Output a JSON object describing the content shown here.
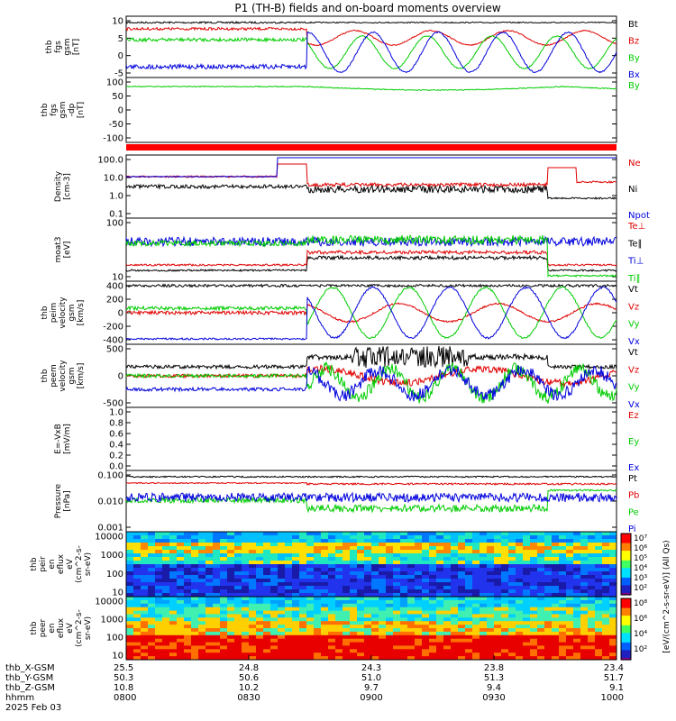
{
  "chart_data": {
    "type": "line",
    "title": "P1 (TH-B) fields and on-board moments overview",
    "colors": {
      "black": "#000000",
      "red": "#e00000",
      "green": "#00cc00",
      "blue": "#0000dd"
    },
    "panels": [
      {
        "id": "fgs",
        "ylabel": [
          "thb",
          "fgs",
          "gsm",
          "[nT]"
        ],
        "ticks": [
          "10",
          "5",
          "0",
          "-5"
        ],
        "legend": [
          {
            "text": "Bt",
            "color": "black"
          },
          {
            "text": "Bz",
            "color": "red"
          },
          {
            "text": "By",
            "color": "green"
          },
          {
            "text": "Bx",
            "color": "blue"
          }
        ]
      },
      {
        "id": "fgs-dp",
        "ylabel": [
          "thb",
          "fgs",
          "gsm",
          "-dp",
          "[nT]"
        ],
        "ticks": [
          "100",
          "50",
          "0",
          "-50",
          "-100"
        ],
        "legend": [
          {
            "text": "By",
            "color": "green"
          }
        ]
      },
      {
        "id": "density",
        "ylabel": [
          "Density",
          "[cm-3]"
        ],
        "ticks": [
          "100.0",
          "10.0",
          "1.0",
          "0.1"
        ],
        "scale": "log",
        "legend": [
          {
            "text": "Ne",
            "color": "red"
          },
          {
            "text": "Ni",
            "color": "black"
          },
          {
            "text": "Npot",
            "color": "blue"
          }
        ]
      },
      {
        "id": "temp",
        "ylabel": [
          "moat3",
          "[eV]"
        ],
        "ticks": [
          "100",
          "10"
        ],
        "scale": "log",
        "legend": [
          {
            "text": "Te⊥",
            "color": "red"
          },
          {
            "text": "Te∥",
            "color": "black"
          },
          {
            "text": "Ti⊥",
            "color": "blue"
          },
          {
            "text": "Ti∥",
            "color": "green"
          }
        ]
      },
      {
        "id": "vi",
        "ylabel": [
          "thb",
          "peim",
          "velocity",
          "gsm",
          "[km/s]"
        ],
        "ticks": [
          "400",
          "200",
          "0",
          "-200",
          "-400"
        ],
        "legend": [
          {
            "text": "Vt",
            "color": "black"
          },
          {
            "text": "Vz",
            "color": "red"
          },
          {
            "text": "Vy",
            "color": "green"
          },
          {
            "text": "Vx",
            "color": "blue"
          }
        ]
      },
      {
        "id": "ve",
        "ylabel": [
          "thb",
          "peem",
          "velocity",
          "gsm",
          "[km/s]"
        ],
        "ticks": [
          "500",
          "0",
          "-500"
        ],
        "legend": [
          {
            "text": "Vt",
            "color": "black"
          },
          {
            "text": "Vz",
            "color": "red"
          },
          {
            "text": "Vy",
            "color": "green"
          },
          {
            "text": "Vx",
            "color": "blue"
          }
        ]
      },
      {
        "id": "efield",
        "ylabel": [
          "E=-VxB",
          "[mV/m]"
        ],
        "ticks": [
          "1.0",
          "0.8",
          "0.6",
          "0.4",
          "0.2",
          "0.0"
        ],
        "legend": [
          {
            "text": "Ez",
            "color": "red"
          },
          {
            "text": "Ey",
            "color": "green"
          },
          {
            "text": "Ex",
            "color": "blue"
          }
        ]
      },
      {
        "id": "pressure",
        "ylabel": [
          "Pressure",
          "[nPa]"
        ],
        "ticks": [
          "0.100",
          "0.010",
          "0.001"
        ],
        "scale": "log",
        "legend": [
          {
            "text": "Pt",
            "color": "black"
          },
          {
            "text": "Pb",
            "color": "red"
          },
          {
            "text": "Pe",
            "color": "green"
          },
          {
            "text": "Pi",
            "color": "blue"
          }
        ]
      },
      {
        "id": "peir",
        "ylabel": [
          "thb",
          "peir",
          "en",
          "eflux",
          "eV",
          "(cm^2-s-",
          "sr-eV)"
        ],
        "ticks": [
          "10000",
          "1000",
          "100",
          "10"
        ],
        "type": "heatmap"
      },
      {
        "id": "peer",
        "ylabel": [
          "thb",
          "peer",
          "en",
          "eflux",
          "eV",
          "(cm^2-s-",
          "sr-eV)"
        ],
        "ticks": [
          "10000",
          "1000",
          "100",
          "10"
        ],
        "type": "heatmap"
      }
    ],
    "colorbar": {
      "label": "[eV/(cm^2-s-sr-eV)] (All Qs)",
      "ticks_upper": [
        "10⁷",
        "10⁶",
        "10⁵",
        "10⁴",
        "10³",
        "10²"
      ],
      "ticks_lower": [
        "10⁸",
        "10⁶",
        "10⁴",
        "10²"
      ]
    },
    "xaxis": {
      "row_labels": [
        "thb_X-GSM",
        "thb_Y-GSM",
        "thb_Z-GSM",
        "hhmm",
        "2025 Feb 03"
      ],
      "columns": [
        {
          "x": "25.5",
          "y": "50.3",
          "z": "10.8",
          "t": "0800"
        },
        {
          "x": "24.8",
          "y": "50.6",
          "z": "10.2",
          "t": "0830"
        },
        {
          "x": "24.3",
          "y": "51.0",
          "z": "9.7",
          "t": "0900"
        },
        {
          "x": "23.8",
          "y": "51.3",
          "z": "9.4",
          "t": "0930"
        },
        {
          "x": "23.4",
          "y": "51.7",
          "z": "9.1",
          "t": "1000"
        }
      ]
    }
  }
}
